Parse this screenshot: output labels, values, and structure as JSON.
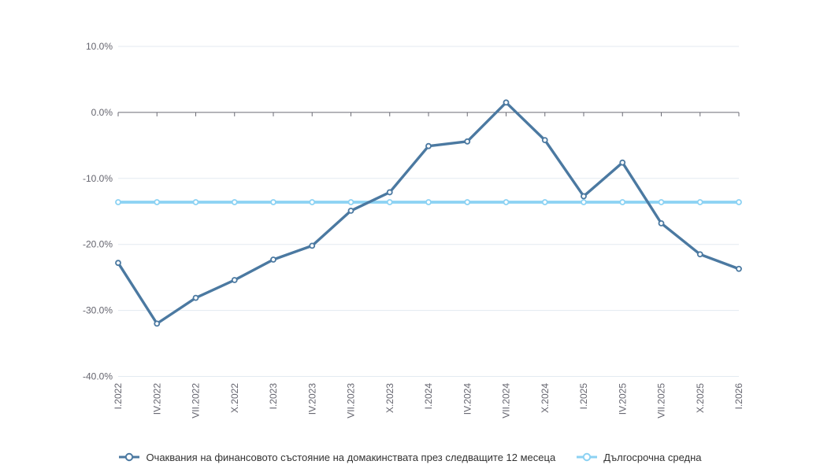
{
  "chart_data": {
    "type": "line",
    "title": "",
    "xlabel": "",
    "ylabel": "",
    "categories": [
      "I.2022",
      "IV.2022",
      "VII.2022",
      "X.2022",
      "I.2023",
      "IV.2023",
      "VII.2023",
      "X.2023",
      "I.2024",
      "IV.2024",
      "VII.2024",
      "X.2024",
      "I.2025",
      "IV.2025",
      "VII.2025",
      "X.2025",
      "I.2026"
    ],
    "series": [
      {
        "name": "Очаквания на финансовото състояние на домакинствата през следващите 12 месеца",
        "color": "#4b79a1",
        "marker": "circle",
        "values": [
          -22.8,
          -32.0,
          -28.1,
          -25.4,
          -22.3,
          -20.2,
          -14.9,
          -12.1,
          -5.1,
          -4.4,
          1.5,
          -4.2,
          -12.7,
          -7.6,
          -16.8,
          -21.5,
          -23.7
        ]
      },
      {
        "name": "Дългосрочна средна",
        "color": "#8cd2f3",
        "marker": "circle",
        "values": [
          -13.6,
          -13.6,
          -13.6,
          -13.6,
          -13.6,
          -13.6,
          -13.6,
          -13.6,
          -13.6,
          -13.6,
          -13.6,
          -13.6,
          -13.6,
          -13.6,
          -13.6,
          -13.6,
          -13.6
        ]
      }
    ],
    "ylim": [
      -40,
      10
    ],
    "yticks": [
      10,
      0,
      -10,
      -20,
      -30,
      -40
    ],
    "ytick_labels": [
      "10.0%",
      "0.0%",
      "-10.0%",
      "-20.0%",
      "-30.0%",
      "-40.0%"
    ],
    "x_axis_line_at": 0,
    "grid": "horizontal",
    "legend_position": "bottom-center"
  },
  "colors": {
    "background": "#ffffff",
    "grid": "#e3eaf1",
    "axis": "#6b6b74",
    "tick_label": "#65656f",
    "legend_text": "#333333"
  }
}
